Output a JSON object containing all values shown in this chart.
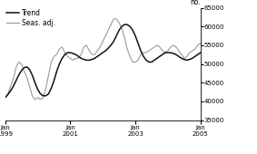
{
  "ylabel": "no.",
  "ylim": [
    35000,
    65000
  ],
  "yticks": [
    35000,
    40000,
    45000,
    50000,
    55000,
    60000,
    65000
  ],
  "xtick_labels": [
    "Jan\n1999",
    "Jan\n2001",
    "Jan\n2003",
    "Jan\n2005"
  ],
  "xtick_positions": [
    0,
    24,
    48,
    72
  ],
  "trend_color": "#111111",
  "seas_color": "#999999",
  "trend_label": "Trend",
  "seas_label": "Seas. adj.",
  "background_color": "#ffffff",
  "trend_data": [
    41000,
    41800,
    42800,
    44000,
    45500,
    47000,
    48200,
    49000,
    49200,
    48500,
    47000,
    45000,
    43200,
    42000,
    41500,
    41500,
    42000,
    43500,
    45500,
    48000,
    50000,
    51500,
    52500,
    53000,
    53000,
    52800,
    52500,
    52000,
    51500,
    51200,
    51000,
    51000,
    51200,
    51500,
    52000,
    52500,
    53000,
    53500,
    54200,
    55000,
    56000,
    57500,
    59000,
    60000,
    60500,
    60500,
    60000,
    59000,
    57500,
    55500,
    53500,
    52000,
    51000,
    50500,
    50500,
    51000,
    51500,
    52000,
    52500,
    53000,
    53000,
    53000,
    52800,
    52500,
    52000,
    51500,
    51200,
    51000,
    51200,
    51500,
    52000,
    52500,
    53000
  ],
  "seas_data": [
    41000,
    42000,
    44000,
    46000,
    49000,
    50500,
    50000,
    48000,
    46500,
    44000,
    41500,
    40500,
    41000,
    40500,
    41000,
    43500,
    47000,
    50500,
    52000,
    52500,
    54000,
    54500,
    53000,
    52000,
    51500,
    51000,
    51500,
    51500,
    52500,
    54500,
    55000,
    53500,
    52500,
    52500,
    53500,
    54500,
    56000,
    57500,
    59000,
    60500,
    62000,
    62000,
    61000,
    59500,
    57000,
    54000,
    52000,
    50500,
    50500,
    51000,
    52500,
    53000,
    53000,
    53500,
    54000,
    54500,
    55000,
    54500,
    53500,
    53000,
    53500,
    54500,
    55000,
    54500,
    53500,
    52500,
    51500,
    52000,
    53000,
    53500,
    54000,
    55000,
    55500
  ]
}
